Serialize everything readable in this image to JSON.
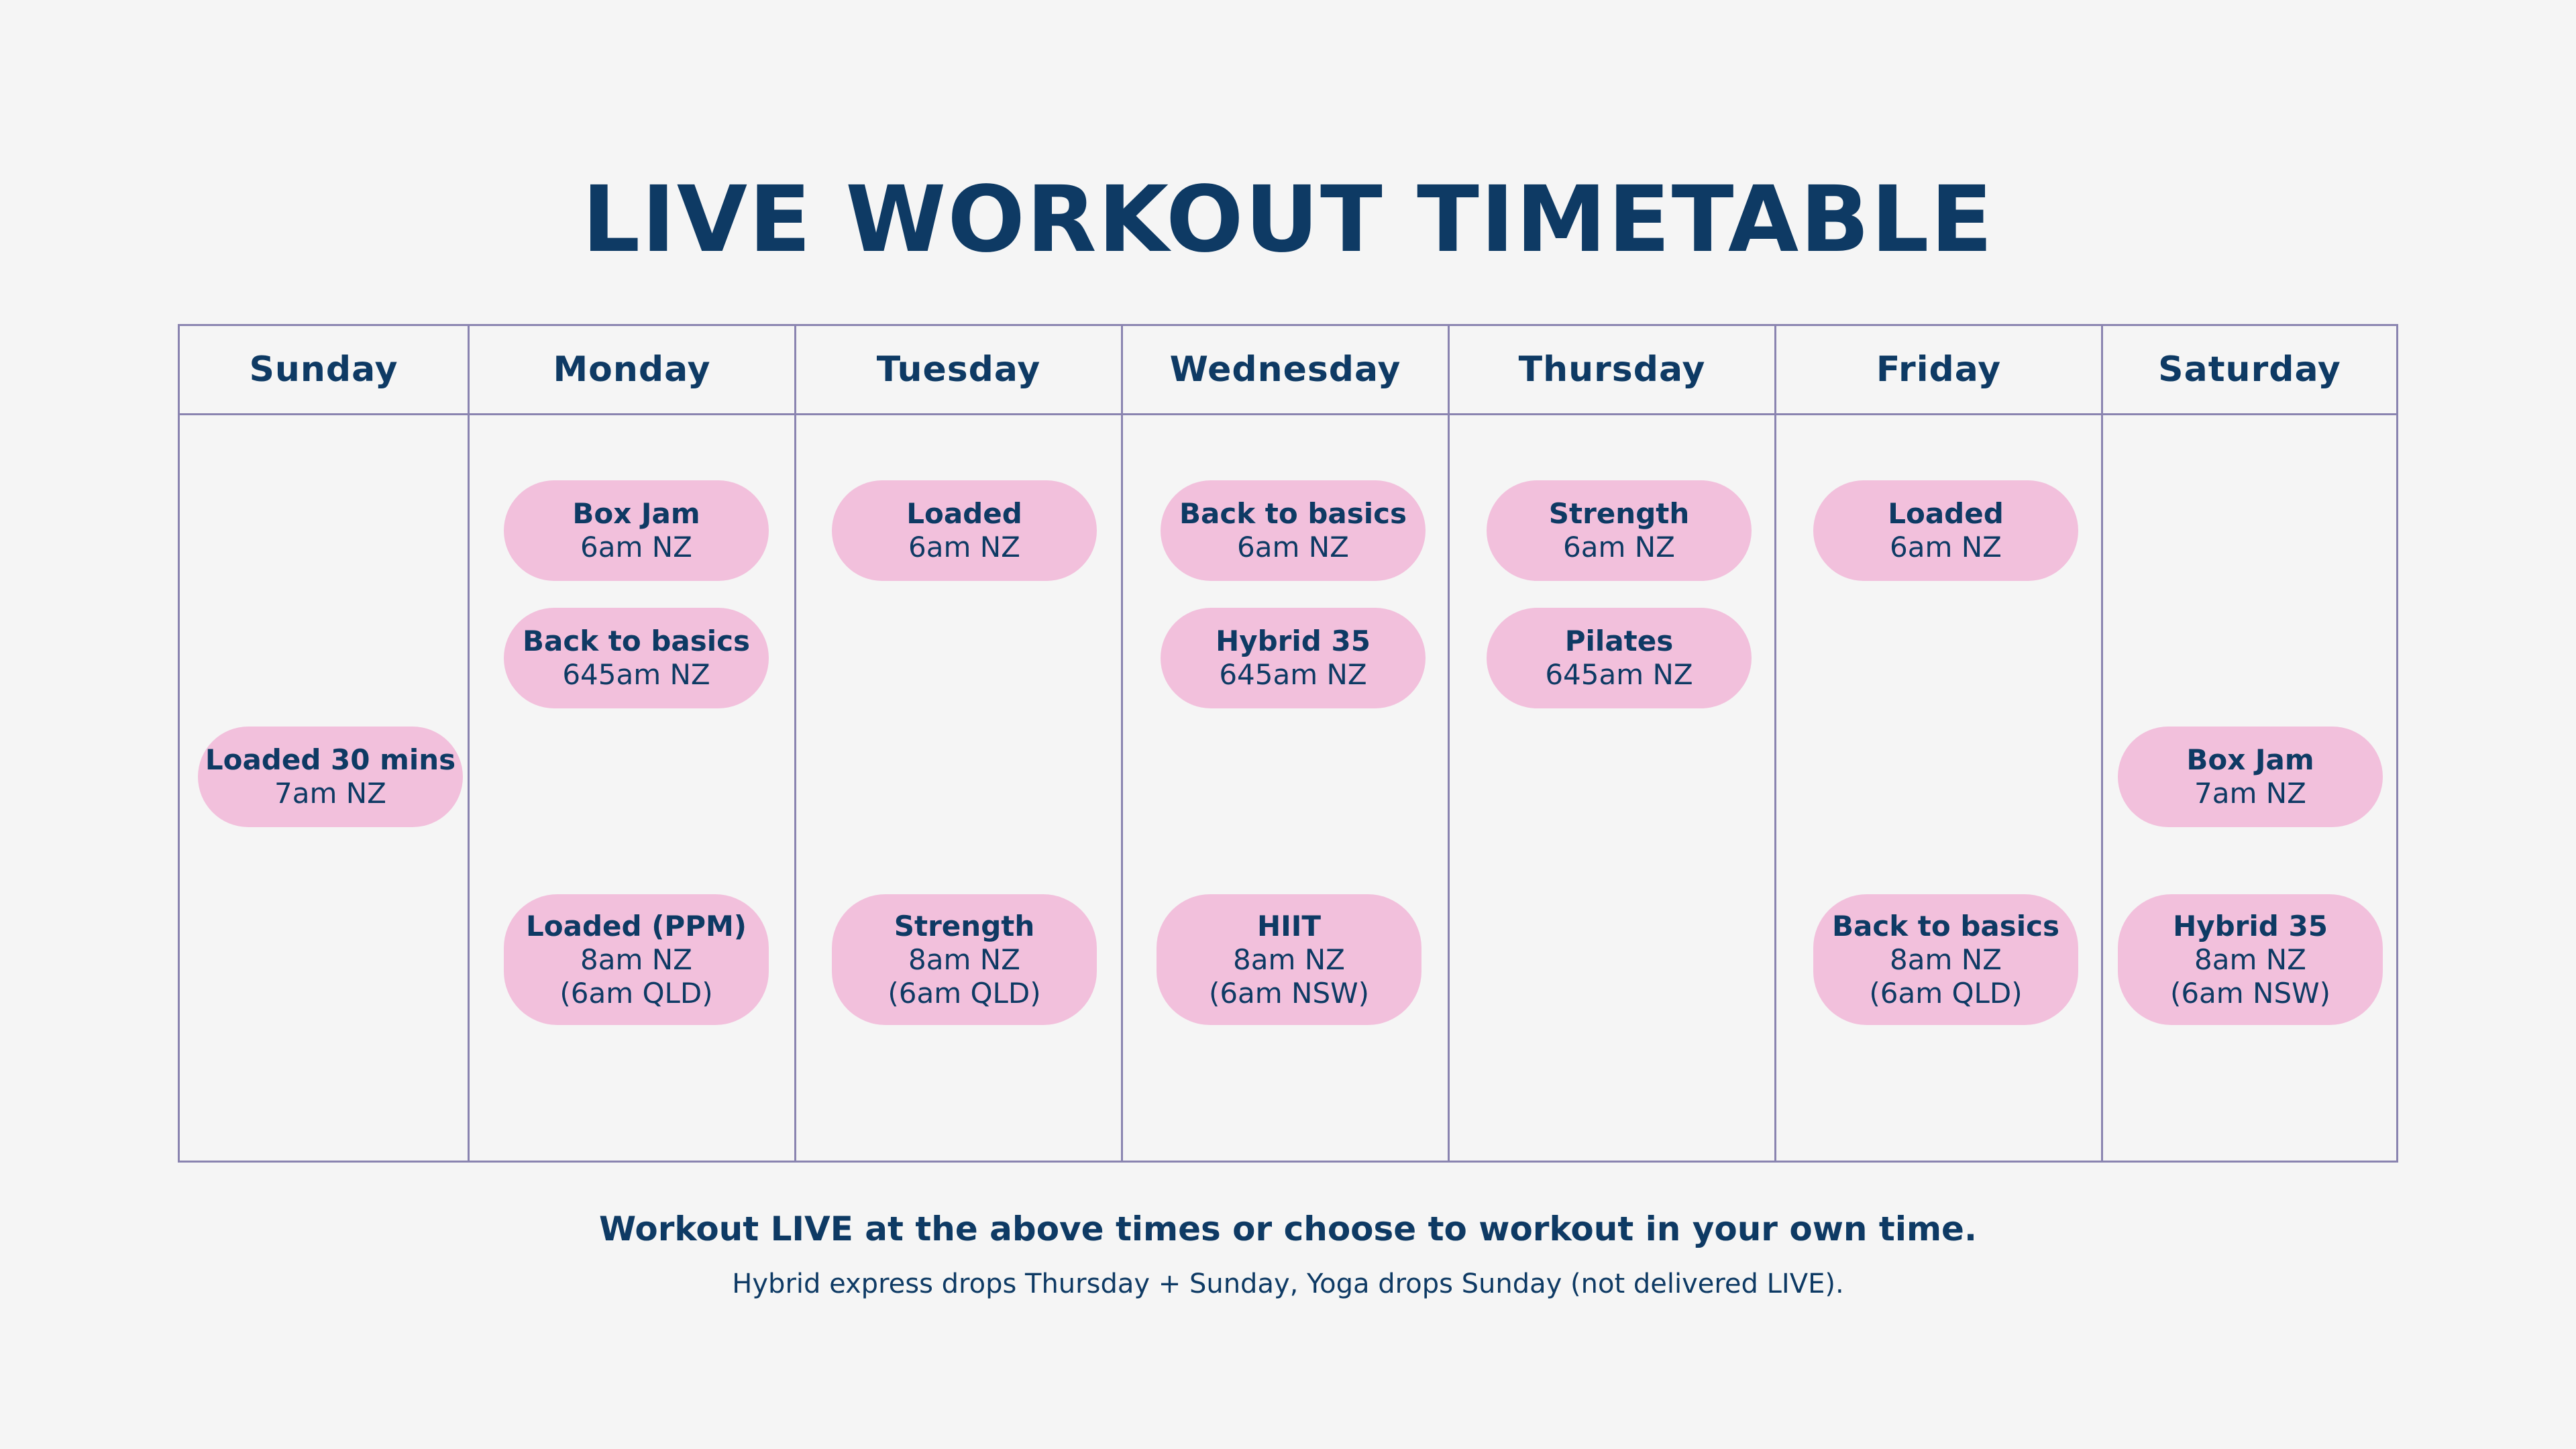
{
  "title": "LIVE WORKOUT TIMETABLE",
  "days": [
    "Sunday",
    "Monday",
    "Tuesday",
    "Wednesday",
    "Thursday",
    "Friday",
    "Saturday"
  ],
  "classes": {
    "sunday": [
      {
        "name": "Loaded 30 mins",
        "time": "7am NZ"
      }
    ],
    "monday": [
      {
        "name": "Box Jam",
        "time": "6am NZ"
      },
      {
        "name": "Back to basics",
        "time": "645am NZ"
      },
      {
        "name": "Loaded (PPM)",
        "time": "8am NZ",
        "alt": "(6am QLD)"
      }
    ],
    "tuesday": [
      {
        "name": "Loaded",
        "time": "6am NZ"
      },
      {
        "name": "Strength",
        "time": "8am NZ",
        "alt": "(6am QLD)"
      }
    ],
    "wednesday": [
      {
        "name": "Back to basics",
        "time": "6am NZ"
      },
      {
        "name": "Hybrid 35",
        "time": "645am NZ"
      },
      {
        "name": "HIIT",
        "time": "8am NZ",
        "alt": "(6am NSW)"
      }
    ],
    "thursday": [
      {
        "name": "Strength",
        "time": "6am NZ"
      },
      {
        "name": "Pilates",
        "time": "645am NZ"
      }
    ],
    "friday": [
      {
        "name": "Loaded",
        "time": "6am NZ"
      },
      {
        "name": "Back to basics",
        "time": "8am NZ",
        "alt": "(6am QLD)"
      }
    ],
    "saturday": [
      {
        "name": "Box Jam",
        "time": "7am NZ"
      },
      {
        "name": "Hybrid 35",
        "time": "8am NZ",
        "alt": "(6am NSW)"
      }
    ]
  },
  "footer": {
    "main": "Workout LIVE at the above times or choose to workout in your own time.",
    "sub": "Hybrid express drops Thursday + Sunday, Yoga drops Sunday (not delivered LIVE)."
  },
  "colors": {
    "navy": "#0e3a64",
    "pill": "#f2c0dc",
    "grid_line": "#8a84b0",
    "background": "#f5f5f5"
  }
}
